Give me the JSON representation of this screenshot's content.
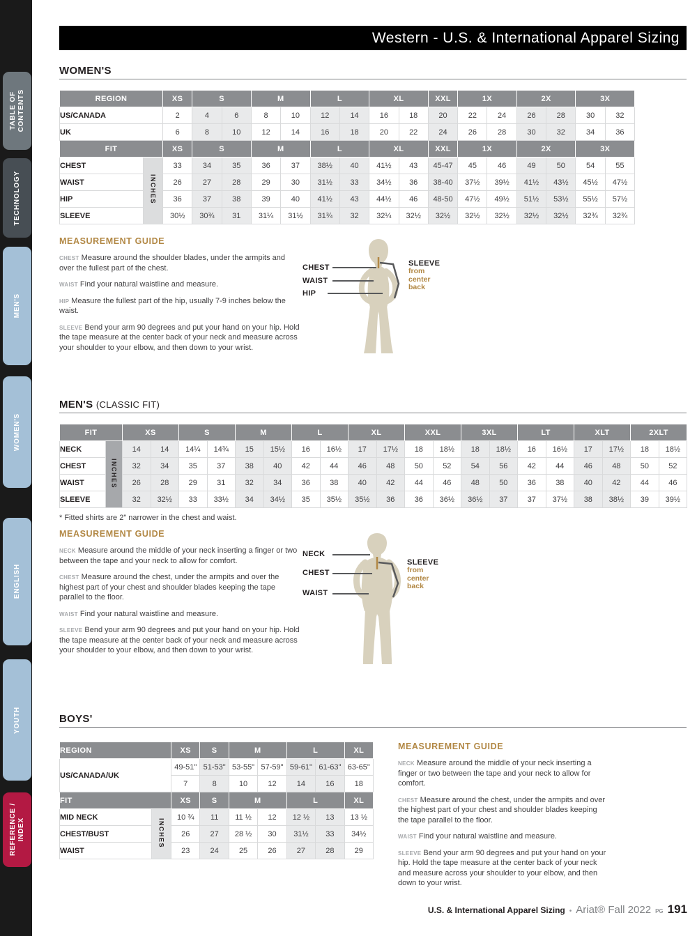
{
  "page": {
    "header_title": "Western - U.S. & International Apparel Sizing",
    "footer": {
      "left": "U.S. & International Apparel Sizing",
      "separator": "•",
      "brand": "Ariat® Fall 2022",
      "pg_label": "PG",
      "page_number": "191"
    }
  },
  "colors": {
    "accent_gold": "#b28845",
    "table_header_gray": "#8b8d90",
    "cell_shade_gray": "#e9eaeb",
    "silhouette_tan": "#d8d1bd",
    "sidebar_black": "#1a1a1a",
    "tab_blue": "#a4c0d7",
    "tab_slate": "#6e777d",
    "tab_darkslate": "#474e54",
    "tab_red": "#b31943",
    "text_dark": "#414042"
  },
  "sidebar": {
    "tabs": [
      {
        "id": "toc",
        "lines": [
          "TABLE OF",
          "CONTENTS"
        ],
        "color": "#6e777d"
      },
      {
        "id": "technology",
        "lines": [
          "TECHNOLOGY"
        ],
        "color": "#474e54"
      },
      {
        "id": "mens",
        "lines": [
          "MEN'S"
        ],
        "color": "#a4c0d7"
      },
      {
        "id": "womens",
        "lines": [
          "WOMEN'S"
        ],
        "color": "#a4c0d7"
      },
      {
        "id": "english",
        "lines": [
          "ENGLISH"
        ],
        "color": "#a4c0d7"
      },
      {
        "id": "youth",
        "lines": [
          "YOUTH"
        ],
        "color": "#a4c0d7"
      },
      {
        "id": "reference",
        "lines": [
          "REFERENCE /",
          "INDEX"
        ],
        "color": "#b31943"
      }
    ]
  },
  "sections": {
    "womens": {
      "heading_main": "WOMEN'S",
      "heading_sub": "",
      "table": {
        "size_groups": [
          [
            "XS",
            1
          ],
          [
            "S",
            2
          ],
          [
            "M",
            2
          ],
          [
            "L",
            2
          ],
          [
            "XL",
            2
          ],
          [
            "XXL",
            1
          ],
          [
            "1X",
            2
          ],
          [
            "2X",
            2
          ],
          [
            "3X",
            2
          ]
        ],
        "shade_start": false,
        "region_header": "REGION",
        "region_rows": [
          {
            "label": "US/CANADA",
            "values": [
              "2",
              "4",
              "6",
              "8",
              "10",
              "12",
              "14",
              "16",
              "18",
              "20",
              "22",
              "24",
              "26",
              "28",
              "30",
              "32"
            ]
          },
          {
            "label": "UK",
            "values": [
              "6",
              "8",
              "10",
              "12",
              "14",
              "16",
              "18",
              "20",
              "22",
              "24",
              "26",
              "28",
              "30",
              "32",
              "34",
              "36"
            ]
          }
        ],
        "fit_header": "FIT",
        "inches_label": "INCHES",
        "fit_rows": [
          {
            "label": "CHEST",
            "values": [
              "33",
              "34",
              "35",
              "36",
              "37",
              "38½",
              "40",
              "41½",
              "43",
              "45-47",
              "45",
              "46",
              "49",
              "50",
              "54",
              "55"
            ]
          },
          {
            "label": "WAIST",
            "values": [
              "26",
              "27",
              "28",
              "29",
              "30",
              "31½",
              "33",
              "34½",
              "36",
              "38-40",
              "37½",
              "39½",
              "41½",
              "43½",
              "45½",
              "47½"
            ]
          },
          {
            "label": "HIP",
            "values": [
              "36",
              "37",
              "38",
              "39",
              "40",
              "41½",
              "43",
              "44½",
              "46",
              "48-50",
              "47½",
              "49½",
              "51½",
              "53½",
              "55½",
              "57½"
            ]
          },
          {
            "label": "SLEEVE",
            "values": [
              "30½",
              "30¾",
              "31",
              "31¼",
              "31½",
              "31¾",
              "32",
              "32¼",
              "32½",
              "32½",
              "32½",
              "32½",
              "32½",
              "32½",
              "32¾",
              "32¾"
            ]
          }
        ]
      },
      "guide": {
        "title": "MEASUREMENT GUIDE",
        "items": [
          {
            "term": "CHEST",
            "text": "Measure around the shoulder blades, under the armpits and over the fullest part of the chest."
          },
          {
            "term": "WAIST",
            "text": "Find your natural waistline and measure."
          },
          {
            "term": "HIP",
            "text": "Measure the fullest part of the hip, usually 7-9 inches below the waist."
          },
          {
            "term": "SLEEVE",
            "text": "Bend your arm 90 degrees and put your hand on your hip. Hold the tape measure at the center back of your neck and measure across your shoulder to your elbow, and then down to your wrist."
          }
        ]
      },
      "figure": {
        "labels": [
          "CHEST",
          "WAIST",
          "HIP"
        ],
        "sleeve": "SLEEVE",
        "sleeve_note": "from center back"
      }
    },
    "mens": {
      "heading_main": "MEN'S",
      "heading_sub": "(CLASSIC FIT)",
      "table": {
        "size_groups": [
          [
            "XS",
            2
          ],
          [
            "S",
            2
          ],
          [
            "M",
            2
          ],
          [
            "L",
            2
          ],
          [
            "XL",
            2
          ],
          [
            "XXL",
            2
          ],
          [
            "3XL",
            2
          ],
          [
            "LT",
            2
          ],
          [
            "XLT",
            2
          ],
          [
            "2XLT",
            2
          ]
        ],
        "shade_start": true,
        "fit_header": "FIT",
        "inches_label": "INCHES",
        "fit_rows": [
          {
            "label": "NECK",
            "values": [
              "14",
              "14",
              "14¼",
              "14¾",
              "15",
              "15½",
              "16",
              "16½",
              "17",
              "17½",
              "18",
              "18½",
              "18",
              "18½",
              "16",
              "16½",
              "17",
              "17½",
              "18",
              "18½"
            ]
          },
          {
            "label": "CHEST",
            "values": [
              "32",
              "34",
              "35",
              "37",
              "38",
              "40",
              "42",
              "44",
              "46",
              "48",
              "50",
              "52",
              "54",
              "56",
              "42",
              "44",
              "46",
              "48",
              "50",
              "52"
            ]
          },
          {
            "label": "WAIST",
            "values": [
              "26",
              "28",
              "29",
              "31",
              "32",
              "34",
              "36",
              "38",
              "40",
              "42",
              "44",
              "46",
              "48",
              "50",
              "36",
              "38",
              "40",
              "42",
              "44",
              "46"
            ]
          },
          {
            "label": "SLEEVE",
            "values": [
              "32",
              "32½",
              "33",
              "33½",
              "34",
              "34½",
              "35",
              "35½",
              "35½",
              "36",
              "36",
              "36½",
              "36½",
              "37",
              "37",
              "37½",
              "38",
              "38½",
              "39",
              "39½"
            ]
          }
        ]
      },
      "note": "* Fitted shirts are 2\" narrower in the chest and waist.",
      "guide": {
        "title": "MEASUREMENT GUIDE",
        "items": [
          {
            "term": "NECK",
            "text": "Measure around the middle of your neck inserting a finger or two between the tape and your neck to allow for comfort."
          },
          {
            "term": "CHEST",
            "text": "Measure around the chest, under the armpits and over the highest part of your chest and shoulder blades keeping the tape parallel to the floor."
          },
          {
            "term": "WAIST",
            "text": "Find your natural waistline and measure."
          },
          {
            "term": "SLEEVE",
            "text": "Bend your arm 90 degrees and put your hand on your hip. Hold the tape measure at the center back of your neck and measure across your shoulder to your elbow, and then down to your wrist."
          }
        ]
      },
      "figure": {
        "labels": [
          "NECK",
          "CHEST",
          "WAIST"
        ],
        "sleeve": "SLEEVE",
        "sleeve_note": "from center back"
      }
    },
    "boys": {
      "heading_main": "BOYS'",
      "heading_sub": "",
      "table": {
        "size_groups": [
          [
            "XS",
            1
          ],
          [
            "S",
            1
          ],
          [
            "M",
            2
          ],
          [
            "L",
            2
          ],
          [
            "XL",
            1
          ]
        ],
        "shade_start": false,
        "region_header": "REGION",
        "region_merged": {
          "label": "US/CANADA/UK",
          "rows": [
            [
              "49-51\"",
              "51-53\"",
              "53-55\"",
              "57-59\"",
              "59-61\"",
              "61-63\"",
              "63-65\""
            ],
            [
              "7",
              "8",
              "10",
              "12",
              "14",
              "16",
              "18"
            ]
          ]
        },
        "fit_header": "FIT",
        "inches_label": "INCHES",
        "fit_rows": [
          {
            "label": "MID NECK",
            "values": [
              "10 ¾",
              "11",
              "11 ½",
              "12",
              "12 ½",
              "13",
              "13 ½"
            ]
          },
          {
            "label": "CHEST/BUST",
            "values": [
              "26",
              "27",
              "28 ½",
              "30",
              "31½",
              "33",
              "34½"
            ]
          },
          {
            "label": "WAIST",
            "values": [
              "23",
              "24",
              "25",
              "26",
              "27",
              "28",
              "29"
            ]
          }
        ]
      },
      "guide": {
        "title": "MEASUREMENT GUIDE",
        "items": [
          {
            "term": "NECK",
            "text": "Measure around the middle of your neck inserting a finger or two between the tape and your neck to allow for comfort."
          },
          {
            "term": "CHEST",
            "text": "Measure around the chest, under the armpits and over the highest part of your chest and shoulder blades keeping the tape parallel to the floor."
          },
          {
            "term": "WAIST",
            "text": "Find your natural waistline and measure."
          },
          {
            "term": "SLEEVE",
            "text": "Bend your arm 90 degrees and put your hand on your hip. Hold the tape measure at the center back of your neck and measure across your shoulder to your elbow, and then down to your wrist."
          }
        ]
      }
    }
  }
}
